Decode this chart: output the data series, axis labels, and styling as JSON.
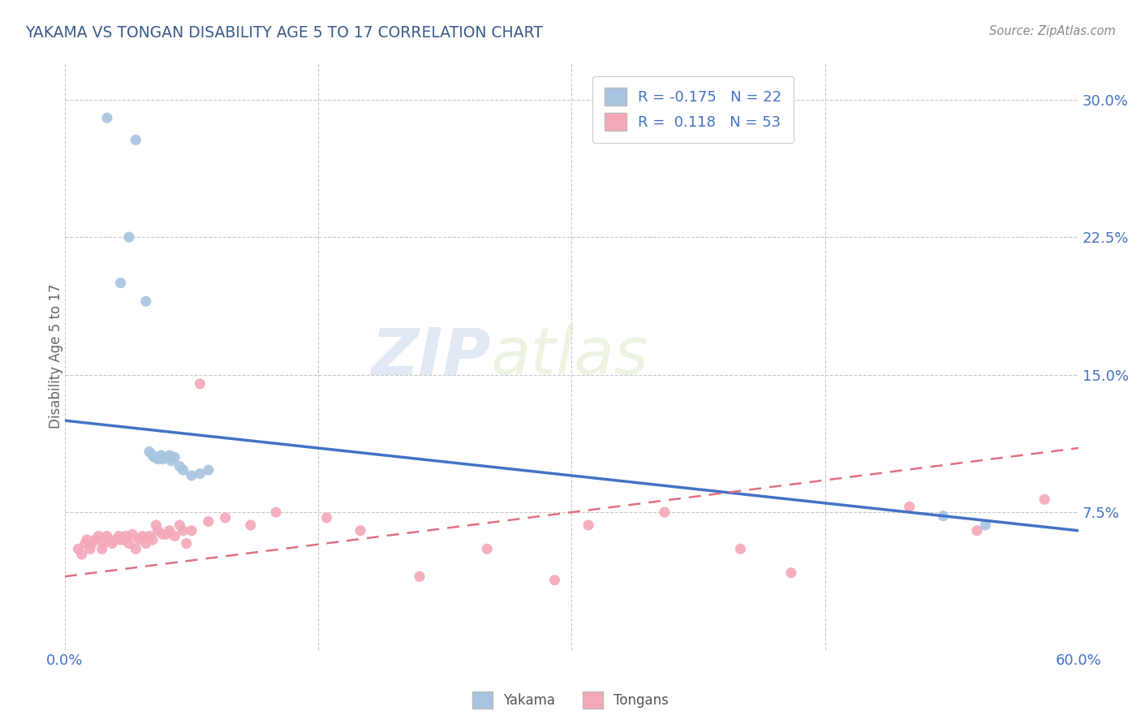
{
  "title": "YAKAMA VS TONGAN DISABILITY AGE 5 TO 17 CORRELATION CHART",
  "source": "Source: ZipAtlas.com",
  "xlabel": "",
  "ylabel": "Disability Age 5 to 17",
  "watermark_zip": "ZIP",
  "watermark_atlas": "atlas",
  "xlim": [
    0.0,
    0.6
  ],
  "ylim": [
    0.0,
    0.32
  ],
  "yticks": [
    0.0,
    0.075,
    0.15,
    0.225,
    0.3
  ],
  "ytick_labels": [
    "",
    "7.5%",
    "15.0%",
    "22.5%",
    "30.0%"
  ],
  "xticks": [
    0.0,
    0.15,
    0.3,
    0.45,
    0.6
  ],
  "xtick_labels": [
    "0.0%",
    "",
    "",
    "",
    "60.0%"
  ],
  "yakama_R": -0.175,
  "yakama_N": 22,
  "tongan_R": 0.118,
  "tongan_N": 53,
  "yakama_color": "#a8c4e0",
  "tongan_color": "#f4a8b8",
  "yakama_line_color": "#4472c4",
  "tongan_line_color": "#e07080",
  "grid_color": "#c8c8c8",
  "title_color": "#3a5a8a",
  "axis_color": "#4472c4",
  "background_color": "#ffffff",
  "yakama_line_x": [
    0.0,
    0.6
  ],
  "yakama_line_y": [
    0.125,
    0.065
  ],
  "tongan_line_x": [
    0.0,
    0.6
  ],
  "tongan_line_y": [
    0.04,
    0.11
  ],
  "yakama_x": [
    0.025,
    0.033,
    0.038,
    0.042,
    0.048,
    0.05,
    0.052,
    0.053,
    0.055,
    0.057,
    0.058,
    0.06,
    0.062,
    0.063,
    0.065,
    0.068,
    0.07,
    0.075,
    0.08,
    0.085,
    0.52,
    0.545
  ],
  "yakama_y": [
    0.29,
    0.2,
    0.225,
    0.278,
    0.19,
    0.108,
    0.106,
    0.105,
    0.104,
    0.106,
    0.104,
    0.105,
    0.106,
    0.103,
    0.105,
    0.1,
    0.098,
    0.095,
    0.096,
    0.098,
    0.073,
    0.068
  ],
  "tongan_x": [
    0.008,
    0.01,
    0.012,
    0.013,
    0.015,
    0.016,
    0.018,
    0.02,
    0.022,
    0.023,
    0.025,
    0.026,
    0.028,
    0.03,
    0.032,
    0.033,
    0.035,
    0.036,
    0.038,
    0.04,
    0.042,
    0.044,
    0.046,
    0.048,
    0.05,
    0.052,
    0.054,
    0.055,
    0.058,
    0.06,
    0.062,
    0.065,
    0.068,
    0.07,
    0.072,
    0.075,
    0.08,
    0.085,
    0.095,
    0.11,
    0.125,
    0.155,
    0.175,
    0.21,
    0.25,
    0.29,
    0.31,
    0.355,
    0.4,
    0.43,
    0.5,
    0.54,
    0.58
  ],
  "tongan_y": [
    0.055,
    0.052,
    0.058,
    0.06,
    0.055,
    0.058,
    0.06,
    0.062,
    0.055,
    0.058,
    0.062,
    0.06,
    0.058,
    0.06,
    0.062,
    0.06,
    0.06,
    0.062,
    0.058,
    0.063,
    0.055,
    0.06,
    0.062,
    0.058,
    0.062,
    0.06,
    0.068,
    0.065,
    0.063,
    0.063,
    0.065,
    0.062,
    0.068,
    0.065,
    0.058,
    0.065,
    0.145,
    0.07,
    0.072,
    0.068,
    0.075,
    0.072,
    0.065,
    0.04,
    0.055,
    0.038,
    0.068,
    0.075,
    0.055,
    0.042,
    0.078,
    0.065,
    0.082
  ]
}
